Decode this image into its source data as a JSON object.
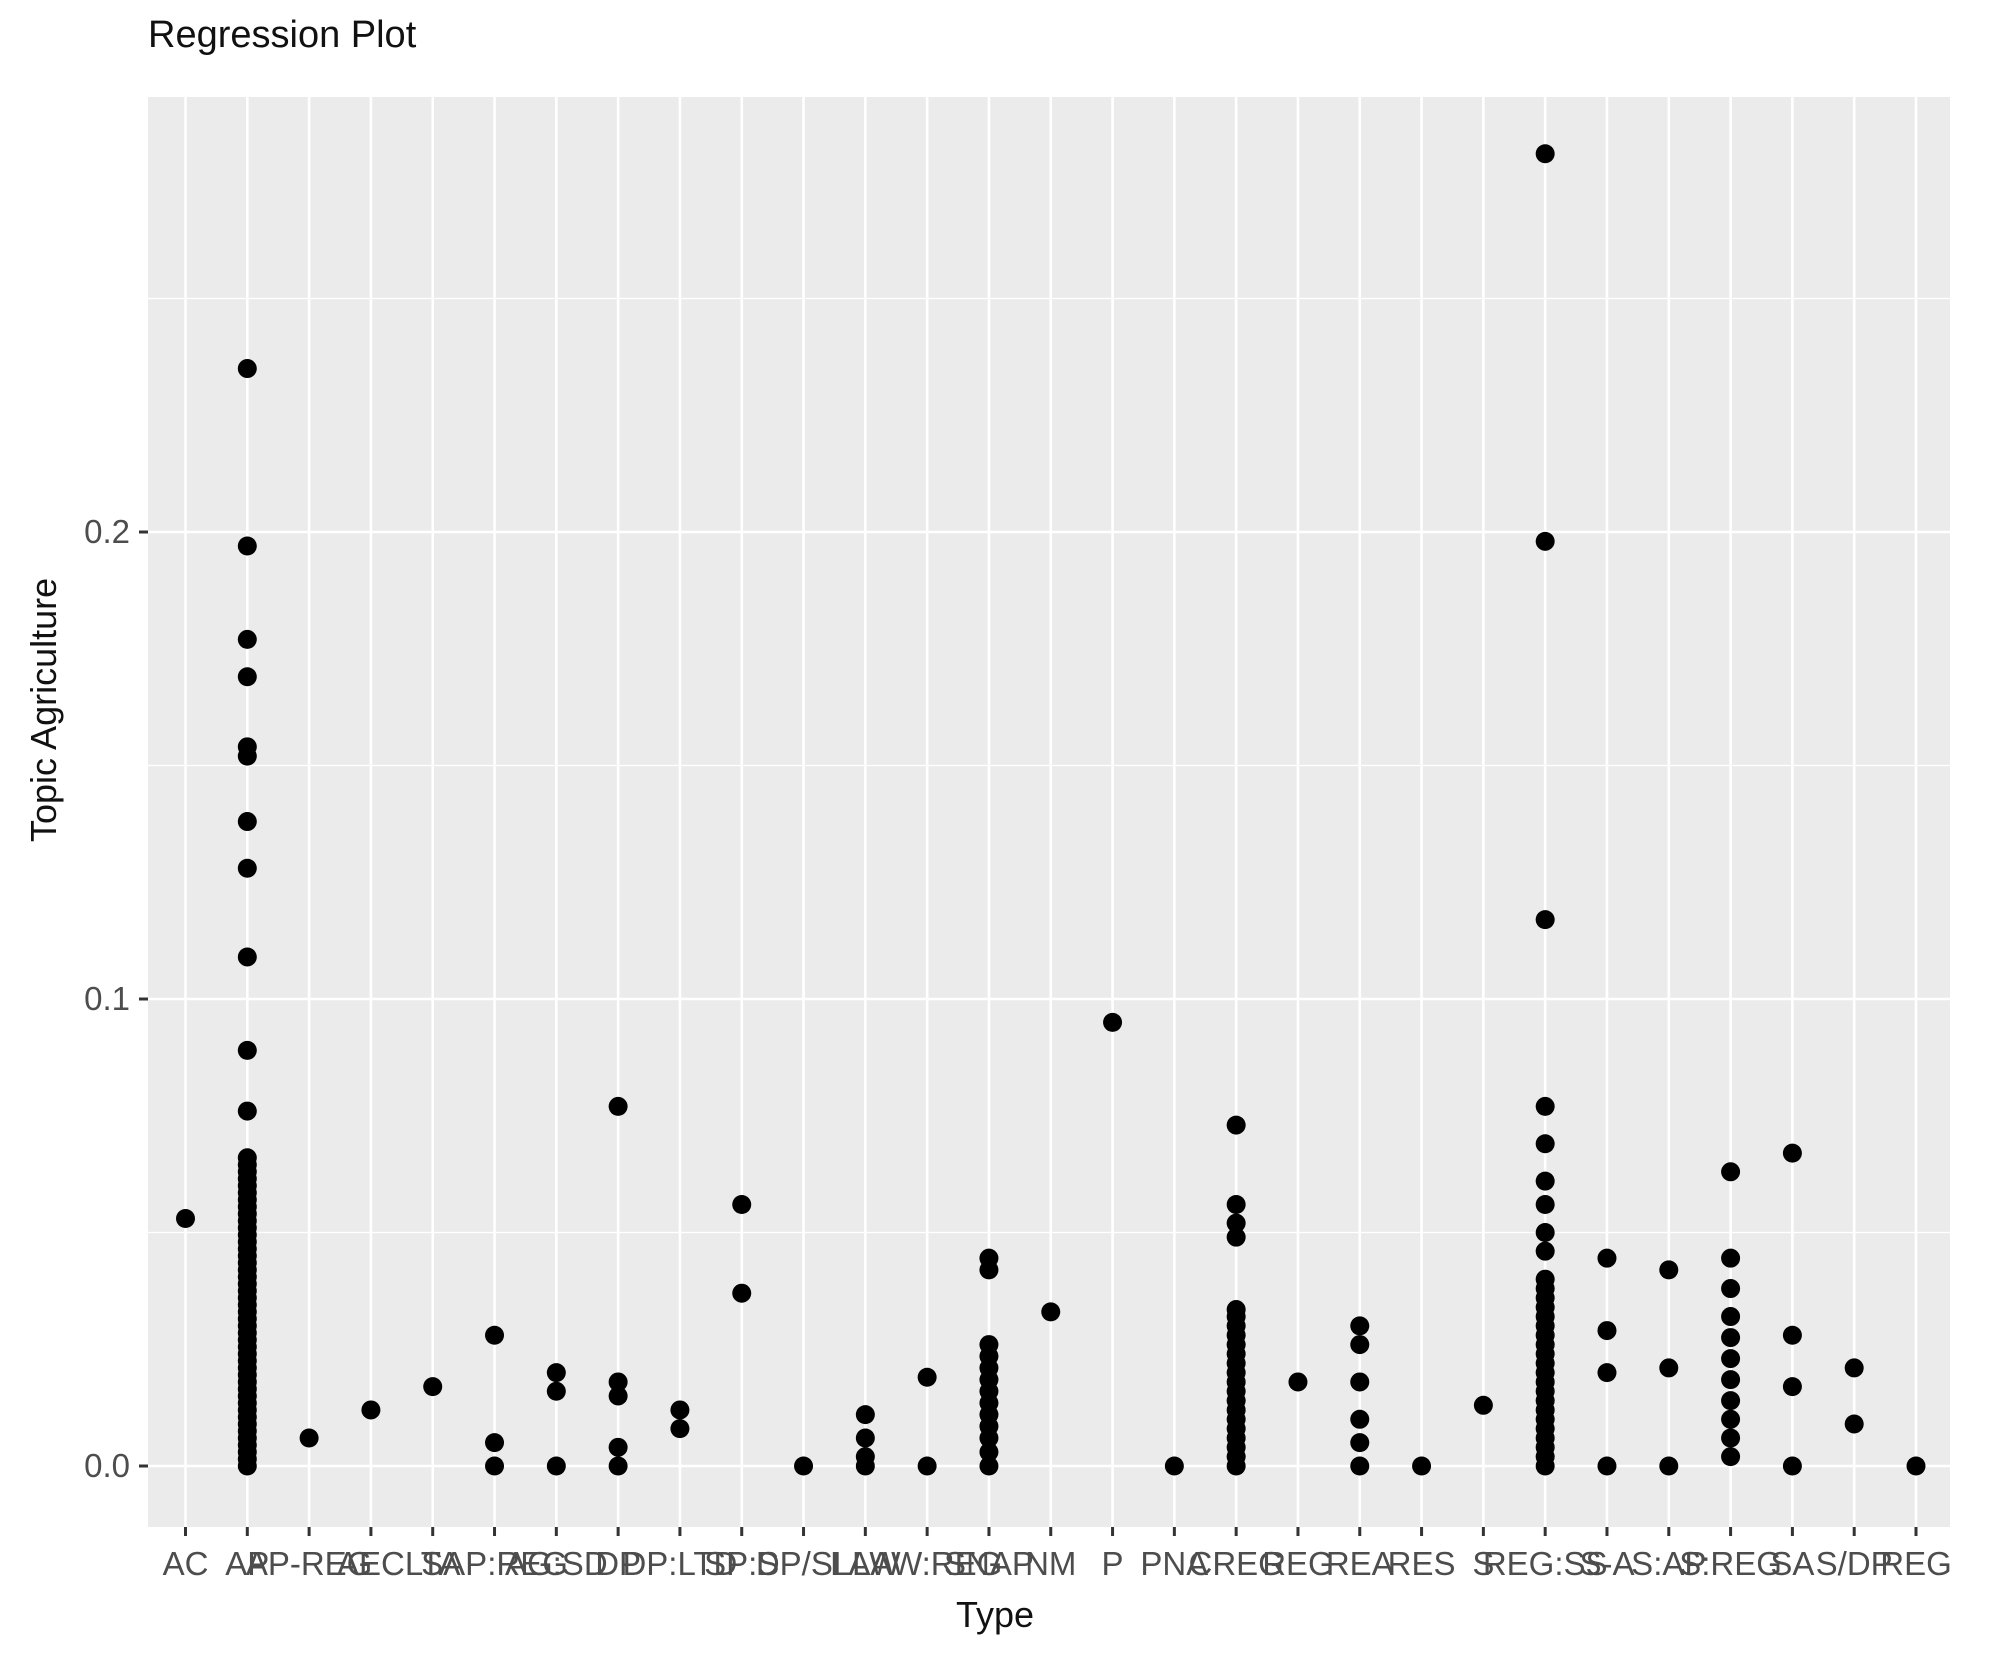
{
  "chart_data": {
    "type": "scatter",
    "title": "Regression Plot",
    "xlabel": "Type",
    "ylabel": "Topic Agriculture",
    "ylim": [
      -0.013,
      0.293
    ],
    "yticks": [
      0.0,
      0.1,
      0.2
    ],
    "ytick_labels": [
      "0.0",
      "0.1",
      "0.2"
    ],
    "minor_yticks": [
      0.05,
      0.15,
      0.25
    ],
    "grid": "major-and-minor-horizontal, major-vertical-per-category",
    "legend": false,
    "panel_bg": "#EBEBEB",
    "grid_color": "#FFFFFF",
    "point_color": "#000000",
    "tick_label_color": "#4D4D4D",
    "tick_mark_color": "#333333",
    "categories": [
      "AC",
      "AP",
      "AP-REG",
      "AEC",
      "LTA",
      "SAP:REG",
      "AG:SD",
      "DP",
      "DP:LTD",
      "SP:S",
      "DP/SL",
      "LAW",
      "LAW:REG",
      "SNAP",
      "NM",
      "P",
      "PNA",
      "CREG",
      "REG",
      "REA",
      "RES",
      "S",
      "REG:SS",
      "S-A",
      "S:AP",
      "S:REG",
      "SA",
      "S/DP",
      "REG"
    ],
    "series": [
      {
        "name": "AC",
        "values": [
          0.053
        ]
      },
      {
        "name": "AP",
        "values": [
          0.235,
          0.197,
          0.177,
          0.169,
          0.154,
          0.152,
          0.138,
          0.128,
          0.109,
          0.089,
          0.076,
          0,
          0.0015,
          0.003,
          0.0045,
          0.006,
          0.0075,
          0.009,
          0.0105,
          0.012,
          0.0135,
          0.015,
          0.0165,
          0.018,
          0.0195,
          0.021,
          0.0225,
          0.024,
          0.0255,
          0.027,
          0.0285,
          0.03,
          0.0315,
          0.033,
          0.0345,
          0.036,
          0.0375,
          0.039,
          0.0405,
          0.042,
          0.0435,
          0.045,
          0.0465,
          0.048,
          0.0495,
          0.051,
          0.0525,
          0.054,
          0.0555,
          0.057,
          0.0585,
          0.06,
          0.0615,
          0.063,
          0.0645,
          0.066
        ]
      },
      {
        "name": "AP-REG",
        "values": [
          0.006
        ]
      },
      {
        "name": "AEC",
        "values": [
          0.012
        ]
      },
      {
        "name": "LTA",
        "values": [
          0.017
        ]
      },
      {
        "name": "SAP:REG",
        "values": [
          0.028,
          0.005,
          0
        ]
      },
      {
        "name": "AG:SD",
        "values": [
          0.02,
          0.016,
          0
        ]
      },
      {
        "name": "DP",
        "values": [
          0.077,
          0.018,
          0.015,
          0.004,
          0
        ]
      },
      {
        "name": "DP:LTD",
        "values": [
          0.012,
          0.008
        ]
      },
      {
        "name": "SP:S",
        "values": [
          0.056,
          0.037
        ]
      },
      {
        "name": "DP/SL",
        "values": [
          0
        ]
      },
      {
        "name": "LAW",
        "values": [
          0.011,
          0.006,
          0.002,
          0
        ]
      },
      {
        "name": "LAW:REG",
        "values": [
          0.019,
          0
        ]
      },
      {
        "name": "SNAP",
        "values": [
          0.0445,
          0.042,
          0.026,
          0.0235,
          0.021,
          0.0185,
          0.016,
          0.0135,
          0.011,
          0.0085,
          0.006,
          0.003,
          0
        ]
      },
      {
        "name": "NM",
        "values": [
          0.033
        ]
      },
      {
        "name": "P",
        "values": [
          0.095
        ]
      },
      {
        "name": "PNA",
        "values": [
          0
        ]
      },
      {
        "name": "CREG",
        "values": [
          0.073,
          0.056,
          0.052,
          0.049,
          0,
          0.002,
          0.004,
          0.006,
          0.008,
          0.01,
          0.012,
          0.014,
          0.016,
          0.018,
          0.02,
          0.022,
          0.024,
          0.026,
          0.028,
          0.03,
          0.032,
          0.0335
        ]
      },
      {
        "name": "REG",
        "values": [
          0.018
        ]
      },
      {
        "name": "REA",
        "values": [
          0.03,
          0.026,
          0.018,
          0.01,
          0.005,
          0
        ]
      },
      {
        "name": "RES",
        "values": [
          0
        ]
      },
      {
        "name": "S",
        "values": [
          0.013
        ]
      },
      {
        "name": "REG:SS",
        "values": [
          0.281,
          0.198,
          0.117,
          0.077,
          0.069,
          0.061,
          0.056,
          0.05,
          0.046,
          0,
          0.002,
          0.004,
          0.006,
          0.008,
          0.01,
          0.012,
          0.014,
          0.016,
          0.018,
          0.02,
          0.022,
          0.024,
          0.026,
          0.028,
          0.03,
          0.032,
          0.034,
          0.036,
          0.038,
          0.04
        ]
      },
      {
        "name": "S-A",
        "values": [
          0.0445,
          0.029,
          0.02,
          0
        ]
      },
      {
        "name": "S:AP",
        "values": [
          0.042,
          0.021,
          0
        ]
      },
      {
        "name": "S:REG",
        "values": [
          0.063,
          0.0445,
          0.038,
          0.032,
          0.0275,
          0.023,
          0.0185,
          0.014,
          0.01,
          0.006,
          0.002
        ]
      },
      {
        "name": "SA",
        "values": [
          0.067,
          0.028,
          0.017,
          0
        ]
      },
      {
        "name": "S/DP",
        "values": [
          0.021,
          0.009
        ]
      },
      {
        "name": "REG",
        "values": [
          0
        ]
      }
    ]
  }
}
